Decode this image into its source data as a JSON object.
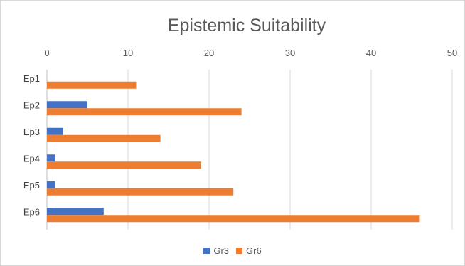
{
  "chart_data": {
    "type": "bar",
    "orientation": "horizontal",
    "title": "Epistemic Suitability",
    "categories": [
      "Ep1",
      "Ep2",
      "Ep3",
      "Ep4",
      "Ep5",
      "Ep6"
    ],
    "series": [
      {
        "name": "Gr3",
        "values": [
          0,
          5,
          2,
          1,
          1,
          7
        ],
        "color": "#4472c4"
      },
      {
        "name": "Gr6",
        "values": [
          11,
          24,
          14,
          19,
          23,
          46
        ],
        "color": "#ed7d31"
      }
    ],
    "xlim": [
      0,
      50
    ],
    "xticks": [
      0,
      10,
      20,
      30,
      40,
      50
    ],
    "xaxis_position": "top",
    "grid": true,
    "legend": "bottom"
  }
}
